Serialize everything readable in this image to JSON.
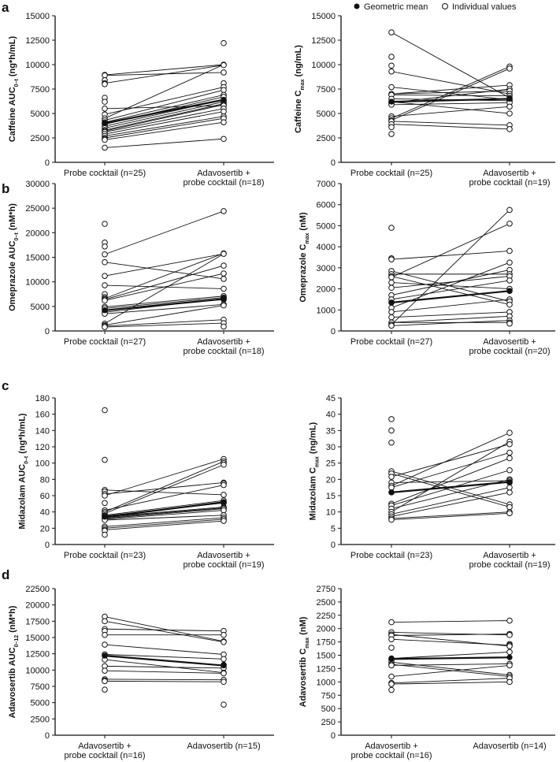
{
  "legend": {
    "mean_label": "Geometric mean",
    "individual_label": "Individual values"
  },
  "colors": {
    "ink": "#111111",
    "marker_fill": "#ffffff"
  },
  "chart_data": [
    {
      "type": "line",
      "panel": "a",
      "ylabel": {
        "main": "Caffeine AUC",
        "sub": "0–t",
        "unit": " (ng*h/mL)"
      },
      "ylim": [
        0,
        15000
      ],
      "yticks": [
        0,
        2500,
        5000,
        7500,
        10000,
        12500,
        15000
      ],
      "categories": [
        [
          "Probe cocktail (n=25)"
        ],
        [
          "Adavosertib +",
          "probe cocktail (n=18)"
        ]
      ],
      "geometric_mean": [
        4000,
        6400
      ],
      "left": [
        8950,
        8900,
        8400,
        8100,
        8000,
        6600,
        6200,
        5500,
        4900,
        4500,
        4300,
        4100,
        4000,
        3900,
        3700,
        3500,
        3300,
        3200,
        3100,
        2900,
        2700,
        2500,
        2400,
        2300,
        1500
      ],
      "right": [
        12200,
        10000,
        9950,
        9200,
        8100,
        7700,
        7400,
        6900,
        6700,
        6400,
        6200,
        6000,
        5900,
        5800,
        5500,
        5200,
        4700,
        4500,
        4100,
        2400
      ],
      "pairs": [
        [
          8950,
          10000
        ],
        [
          8900,
          9200
        ],
        [
          8100,
          9950
        ],
        [
          4500,
          10000
        ],
        [
          5500,
          5800
        ],
        [
          4900,
          7700
        ],
        [
          4300,
          7400
        ],
        [
          4100,
          6900
        ],
        [
          3900,
          6700
        ],
        [
          3700,
          6400
        ],
        [
          3500,
          6200
        ],
        [
          3300,
          6000
        ],
        [
          3200,
          5900
        ],
        [
          3100,
          5500
        ],
        [
          2900,
          5200
        ],
        [
          2700,
          4700
        ],
        [
          2500,
          4500
        ],
        [
          2300,
          4100
        ],
        [
          1500,
          2400
        ]
      ]
    },
    {
      "type": "line",
      "panel": "a2",
      "ylabel": {
        "main": "Caffeine C",
        "sub": "max",
        "unit": " (ng/mL)"
      },
      "ylim": [
        0,
        15000
      ],
      "yticks": [
        0,
        2500,
        5000,
        7500,
        10000,
        12500,
        15000
      ],
      "categories": [
        [
          "Probe cocktail (n=25)"
        ],
        [
          "Adavosertib +",
          "probe cocktail (n=19)"
        ]
      ],
      "geometric_mean": [
        6200,
        6500
      ],
      "left": [
        13300,
        10800,
        9900,
        9300,
        7700,
        7000,
        6900,
        6500,
        6200,
        6100,
        5900,
        4700,
        4500,
        4300,
        4200,
        3900,
        3600,
        2900
      ],
      "right": [
        9800,
        9600,
        7900,
        7500,
        7300,
        7000,
        6800,
        6600,
        6500,
        6400,
        6300,
        6100,
        5700,
        5000,
        3800,
        3400
      ],
      "pairs": [
        [
          13300,
          6600
        ],
        [
          9300,
          7000
        ],
        [
          7700,
          6400
        ],
        [
          7000,
          7300
        ],
        [
          6900,
          6800
        ],
        [
          6500,
          6300
        ],
        [
          6100,
          7500
        ],
        [
          5900,
          6100
        ],
        [
          4700,
          5700
        ],
        [
          4500,
          9800
        ],
        [
          4300,
          9600
        ],
        [
          4200,
          3800
        ],
        [
          3900,
          3400
        ],
        [
          6200,
          5000
        ],
        [
          7000,
          7900
        ]
      ]
    },
    {
      "type": "line",
      "panel": "b",
      "ylabel": {
        "main": "Omeprazole AUC",
        "sub": "0–t",
        "unit": " (nM*h)"
      },
      "ylim": [
        0,
        30000
      ],
      "yticks": [
        0,
        5000,
        10000,
        15000,
        20000,
        25000,
        30000
      ],
      "categories": [
        [
          "Probe cocktail (n=27)"
        ],
        [
          "Adavosertib +",
          "probe cocktail (n=18)"
        ]
      ],
      "geometric_mean": [
        4200,
        6500
      ],
      "left": [
        21800,
        18000,
        17200,
        15600,
        14000,
        11200,
        9300,
        7500,
        6900,
        6600,
        6400,
        6200,
        4900,
        4600,
        4200,
        3800,
        3500,
        1500,
        1200,
        1000,
        800
      ],
      "right": [
        24400,
        15800,
        15700,
        13300,
        11700,
        10600,
        8600,
        7100,
        6800,
        6600,
        6400,
        5400,
        5200,
        2300,
        1600,
        900
      ],
      "pairs": [
        [
          15600,
          24400
        ],
        [
          14000,
          10600
        ],
        [
          11200,
          15700
        ],
        [
          6600,
          15800
        ],
        [
          6400,
          13300
        ],
        [
          9300,
          8600
        ],
        [
          4900,
          7100
        ],
        [
          4600,
          6800
        ],
        [
          3800,
          6600
        ],
        [
          3500,
          5400
        ],
        [
          1500,
          15700
        ],
        [
          1200,
          5200
        ],
        [
          1000,
          2300
        ],
        [
          800,
          1600
        ],
        [
          6200,
          11700
        ]
      ]
    },
    {
      "type": "line",
      "panel": "b2",
      "ylabel": {
        "main": "Omeprazole C",
        "sub": "max",
        "unit": " (nM)"
      },
      "ylim": [
        0,
        7000
      ],
      "yticks": [
        0,
        1000,
        2000,
        3000,
        4000,
        5000,
        6000,
        7000
      ],
      "categories": [
        [
          "Probe cocktail (n=27)"
        ],
        [
          "Adavosertib +",
          "probe cocktail (n=20)"
        ]
      ],
      "geometric_mean": [
        1350,
        1900
      ],
      "left": [
        4900,
        3450,
        3400,
        2850,
        2700,
        2600,
        2550,
        2300,
        2050,
        1700,
        1500,
        1350,
        1100,
        900,
        650,
        400,
        300,
        250
      ],
      "right": [
        5750,
        5100,
        3800,
        3250,
        2900,
        2700,
        2600,
        2400,
        2000,
        1900,
        1500,
        1400,
        1250,
        900,
        700,
        500,
        400,
        350
      ],
      "pairs": [
        [
          3400,
          3800
        ],
        [
          2850,
          1400
        ],
        [
          2600,
          1250
        ],
        [
          2550,
          5100
        ],
        [
          300,
          5750
        ],
        [
          2300,
          2000
        ],
        [
          2050,
          2600
        ],
        [
          1700,
          2900
        ],
        [
          1500,
          2400
        ],
        [
          1100,
          3250
        ],
        [
          900,
          1500
        ],
        [
          650,
          900
        ],
        [
          400,
          700
        ],
        [
          250,
          500
        ],
        [
          2700,
          2700
        ],
        [
          400,
          400
        ]
      ]
    },
    {
      "type": "line",
      "panel": "c",
      "ylabel": {
        "main": "Midazolam AUC",
        "sub": "0–t",
        "unit": " (ng*h/mL)"
      },
      "ylim": [
        0,
        180
      ],
      "yticks": [
        0,
        20,
        40,
        60,
        80,
        100,
        120,
        140,
        160,
        180
      ],
      "categories": [
        [
          "Probe cocktail (n=23)"
        ],
        [
          "Adavosertib +",
          "probe cocktail (n=19)"
        ]
      ],
      "geometric_mean": [
        34,
        52
      ],
      "left": [
        165,
        104,
        67,
        65,
        62,
        60,
        51,
        42,
        40,
        38,
        36,
        35,
        34,
        33,
        32,
        31,
        30,
        22,
        20,
        18,
        17,
        12
      ],
      "right": [
        105,
        102,
        100,
        98,
        76,
        75,
        73,
        61,
        54,
        52,
        51,
        46,
        45,
        44,
        42,
        36,
        33,
        31,
        29
      ],
      "pairs": [
        [
          60,
          105
        ],
        [
          40,
          102
        ],
        [
          38,
          98
        ],
        [
          67,
          61
        ],
        [
          62,
          76
        ],
        [
          42,
          73
        ],
        [
          36,
          54
        ],
        [
          35,
          51
        ],
        [
          34,
          46
        ],
        [
          33,
          45
        ],
        [
          32,
          44
        ],
        [
          31,
          42
        ],
        [
          30,
          36
        ],
        [
          22,
          33
        ],
        [
          20,
          31
        ],
        [
          18,
          29
        ]
      ]
    },
    {
      "type": "line",
      "panel": "c2",
      "ylabel": {
        "main": "Midazolam C",
        "sub": "max",
        "unit": " (ng/mL)"
      },
      "ylim": [
        0,
        45
      ],
      "yticks": [
        0,
        5,
        10,
        15,
        20,
        25,
        30,
        35,
        40,
        45
      ],
      "categories": [
        [
          "Probe cocktail (n=23)"
        ],
        [
          "Adavosertib +",
          "probe cocktail (n=19)"
        ]
      ],
      "geometric_mean": [
        16,
        19.2
      ],
      "left": [
        38.5,
        35,
        31.3,
        22.5,
        21.8,
        20.8,
        19,
        18,
        17.5,
        16,
        12.5,
        12,
        11,
        10,
        9.3,
        8.6,
        8,
        7.6
      ],
      "right": [
        34.3,
        31.6,
        30.8,
        28.2,
        26.5,
        22.8,
        20,
        19.6,
        19,
        17.5,
        16,
        12.3,
        11.5,
        10,
        9.6
      ],
      "pairs": [
        [
          22.5,
          12.3
        ],
        [
          21.8,
          11.5
        ],
        [
          20.8,
          30.8
        ],
        [
          18,
          34.3
        ],
        [
          17.5,
          28.2
        ],
        [
          12.5,
          26.5
        ],
        [
          12,
          22.8
        ],
        [
          11,
          20
        ],
        [
          10,
          31.6
        ],
        [
          9.3,
          17.5
        ],
        [
          8.6,
          16
        ],
        [
          8,
          10
        ],
        [
          7.6,
          9.6
        ],
        [
          19,
          19.6
        ]
      ]
    },
    {
      "type": "line",
      "panel": "d",
      "ylabel": {
        "main": "Adavosertib AUC",
        "sub": "0–12",
        "unit": " (nM*h)"
      },
      "ylim": [
        0,
        22500
      ],
      "yticks": [
        0,
        2500,
        5000,
        7500,
        10000,
        12500,
        15000,
        17500,
        20000,
        22500
      ],
      "categories": [
        [
          "Adavosertib +",
          "probe cocktail (n=16)"
        ],
        [
          "Adavosertib (n=15)"
        ]
      ],
      "geometric_mean": [
        12200,
        10700
      ],
      "left": [
        18200,
        17500,
        16300,
        16000,
        15400,
        13900,
        12400,
        12200,
        11600,
        10600,
        9900,
        8600,
        8400,
        8300,
        7000
      ],
      "right": [
        16000,
        15400,
        14400,
        14300,
        12400,
        11700,
        10800,
        10700,
        10300,
        9600,
        9500,
        8500,
        8200,
        4700
      ],
      "pairs": [
        [
          18200,
          14400
        ],
        [
          17500,
          14300
        ],
        [
          16300,
          16000
        ],
        [
          15400,
          15400
        ],
        [
          13900,
          12400
        ],
        [
          12400,
          11700
        ],
        [
          11600,
          9600
        ],
        [
          10600,
          10300
        ],
        [
          9900,
          9500
        ],
        [
          8600,
          8500
        ],
        [
          8300,
          8200
        ]
      ]
    },
    {
      "type": "line",
      "panel": "d2",
      "ylabel": {
        "main": "Adavosertib C",
        "sub": "max",
        "unit": " (nM)"
      },
      "ylim": [
        0,
        2750
      ],
      "yticks": [
        0,
        250,
        500,
        750,
        1000,
        1250,
        1500,
        1750,
        2000,
        2250,
        2500,
        2750
      ],
      "categories": [
        [
          "Adavosertib +",
          "probe cocktail (n=16)"
        ],
        [
          "Adavosertib (n=14)"
        ]
      ],
      "geometric_mean": [
        1430,
        1460
      ],
      "left": [
        2120,
        1930,
        1890,
        1870,
        1800,
        1640,
        1440,
        1420,
        1370,
        1330,
        1310,
        1100,
        980,
        960,
        850
      ],
      "right": [
        2150,
        1900,
        1880,
        1710,
        1690,
        1670,
        1560,
        1340,
        1310,
        1130,
        1100,
        1070,
        1000
      ],
      "pairs": [
        [
          2120,
          2150
        ],
        [
          1930,
          1880
        ],
        [
          1890,
          1670
        ],
        [
          1870,
          1900
        ],
        [
          1800,
          1690
        ],
        [
          1440,
          1560
        ],
        [
          1370,
          1130
        ],
        [
          1330,
          1100
        ],
        [
          1310,
          1340
        ],
        [
          1100,
          1310
        ],
        [
          980,
          1070
        ],
        [
          960,
          1000
        ]
      ]
    }
  ],
  "panel_letters": [
    "a",
    "b",
    "c",
    "d"
  ]
}
